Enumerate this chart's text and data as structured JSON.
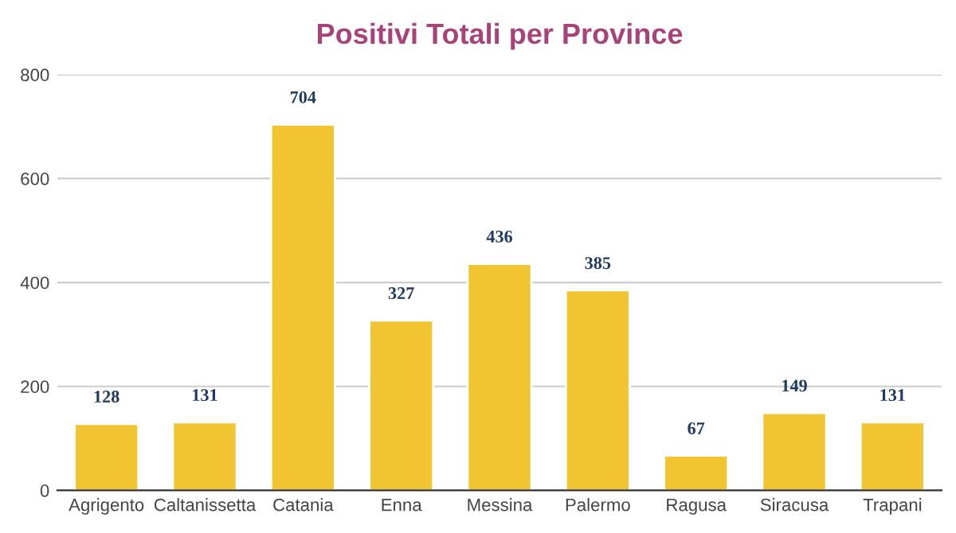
{
  "chart_data": {
    "type": "bar",
    "title": "Positivi Totali per Province",
    "categories": [
      "Agrigento",
      "Caltanissetta",
      "Catania",
      "Enna",
      "Messina",
      "Palermo",
      "Ragusa",
      "Siracusa",
      "Trapani"
    ],
    "values": [
      128,
      131,
      704,
      327,
      436,
      385,
      67,
      149,
      131
    ],
    "color": "#f0c531",
    "ylim": [
      0,
      800
    ],
    "yticks": [
      0,
      200,
      400,
      600,
      800
    ],
    "grid": "y",
    "data_labels": true,
    "legend": false
  }
}
